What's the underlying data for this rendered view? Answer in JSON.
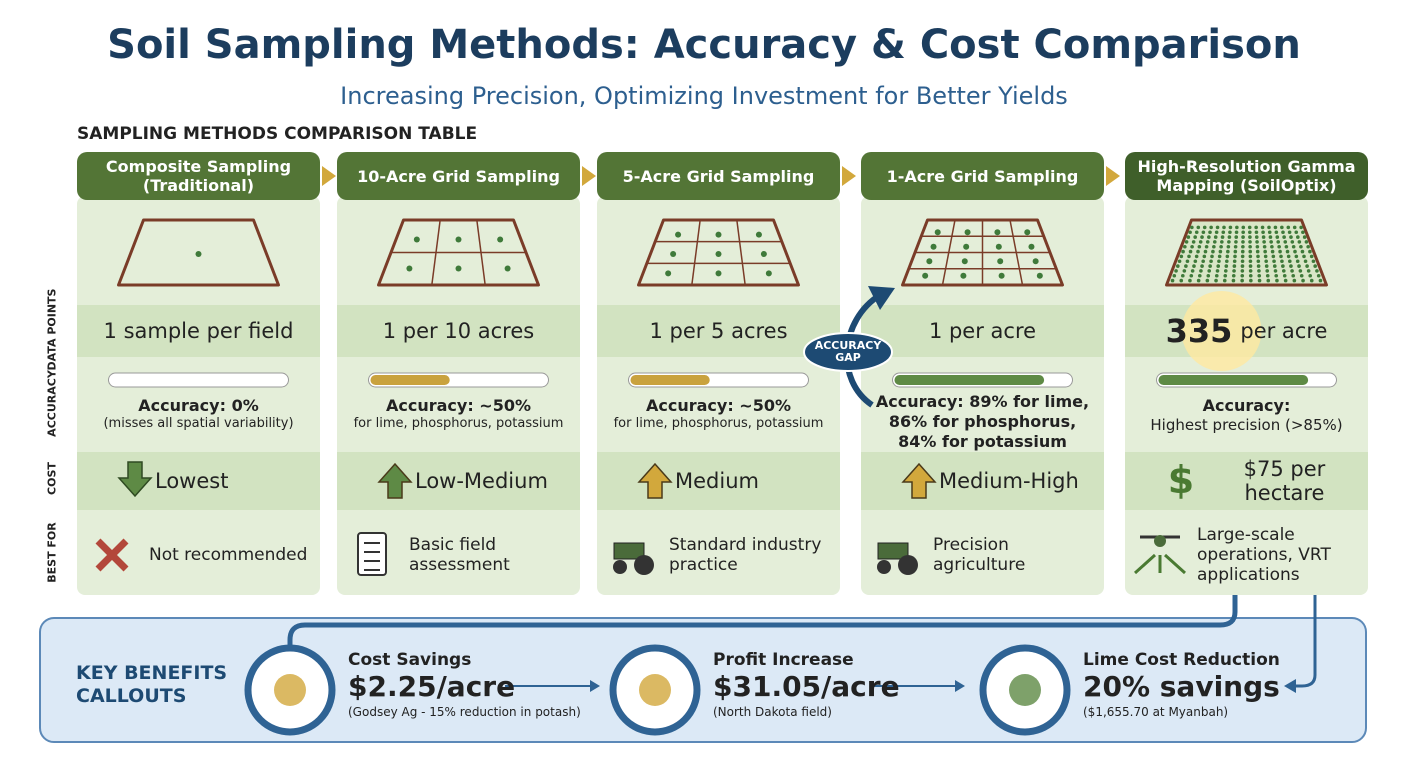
{
  "header": {
    "title": "Soil Sampling Methods: Accuracy & Cost Comparison",
    "subtitle": "Increasing Precision, Optimizing Investment for Better Yields"
  },
  "table": {
    "heading": "SAMPLING METHODS COMPARISON TABLE",
    "row_labels": [
      "DATA POINTS",
      "ACCURACY",
      "COST",
      "BEST FOR"
    ],
    "columns": [
      {
        "name": "Composite Sampling (Traditional)",
        "data_points": "1 sample per field",
        "accuracy_label": "Accuracy: 0%",
        "accuracy_note": "(misses all spatial variability)",
        "cost": "Lowest",
        "best_for": "Not recommended"
      },
      {
        "name": "10-Acre Grid Sampling",
        "data_points": "1 per 10 acres",
        "accuracy_label": "Accuracy: ~50%",
        "accuracy_note": "for lime, phosphorus, potassium",
        "cost": "Low-Medium",
        "best_for": "Basic field assessment"
      },
      {
        "name": "5-Acre Grid Sampling",
        "data_points": "1 per 5 acres",
        "accuracy_label": "Accuracy: ~50%",
        "accuracy_note": "for lime, phosphorus, potassium",
        "cost": "Medium",
        "best_for": "Standard industry practice"
      },
      {
        "name": "1-Acre Grid Sampling",
        "data_points": "1 per acre",
        "accuracy_label": "Accuracy: 89% for lime, 86% for phosphorus, 84% for potassium",
        "cost": "Medium-High",
        "best_for": "Precision agriculture"
      },
      {
        "name": "High-Resolution Gamma Mapping (SoilOptix)",
        "data_points_value": "335",
        "data_points": "per acre",
        "accuracy_label": "Accuracy:",
        "accuracy_note": "Highest precision (>85%)",
        "cost": "$75 per hectare",
        "best_for": "Large-scale operations, VRT applications"
      }
    ],
    "annotation": "ACCURACY GAP"
  },
  "benefits": {
    "heading": "KEY BENEFITS CALLOUTS",
    "items": [
      {
        "title": "Cost Savings",
        "value": "$2.25/acre",
        "note": "(Godsey Ag - 15% reduction in potash)"
      },
      {
        "title": "Profit Increase",
        "value": "$31.05/acre",
        "note": "(North Dakota field)"
      },
      {
        "title": "Lime Cost Reduction",
        "value": "20% savings",
        "note": "($1,655.70 at Myanbah)"
      }
    ]
  }
}
